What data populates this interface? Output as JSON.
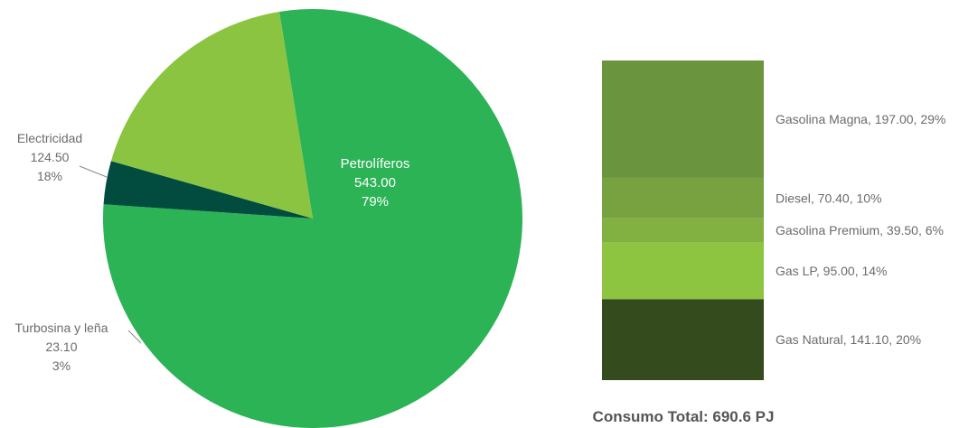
{
  "chart_data": [
    {
      "type": "pie",
      "slices": [
        {
          "name": "Petrolíferos",
          "value": "543.00",
          "percent": "79%",
          "color": "#2bb356",
          "label_inside": true
        },
        {
          "name": "Turbosina y leña",
          "value": "23.10",
          "percent": "3%",
          "color": "#024b3f",
          "label_inside": false
        },
        {
          "name": "Electricidad",
          "value": "124.50",
          "percent": "18%",
          "color": "#8bc440",
          "label_inside": false
        }
      ]
    },
    {
      "type": "bar",
      "stacked": true,
      "segments": [
        {
          "label": "Gasolina Magna, 197.00, 29%",
          "value": 197.0,
          "percent": 29,
          "color": "#6a953e"
        },
        {
          "label": "Diesel, 70.40, 10%",
          "value": 70.4,
          "percent": 10,
          "color": "#77a23f"
        },
        {
          "label": "Gasolina Premium, 39.50, 6%",
          "value": 39.5,
          "percent": 6,
          "color": "#83b141"
        },
        {
          "label": "Gas LP, 95.00, 14%",
          "value": 95.0,
          "percent": 14,
          "color": "#8dc540"
        },
        {
          "label": "Gas Natural, 141.10, 20%",
          "value": 141.1,
          "percent": 20,
          "color": "#344b1e"
        }
      ],
      "total_label": "Consumo Total: 690.6 PJ"
    }
  ]
}
